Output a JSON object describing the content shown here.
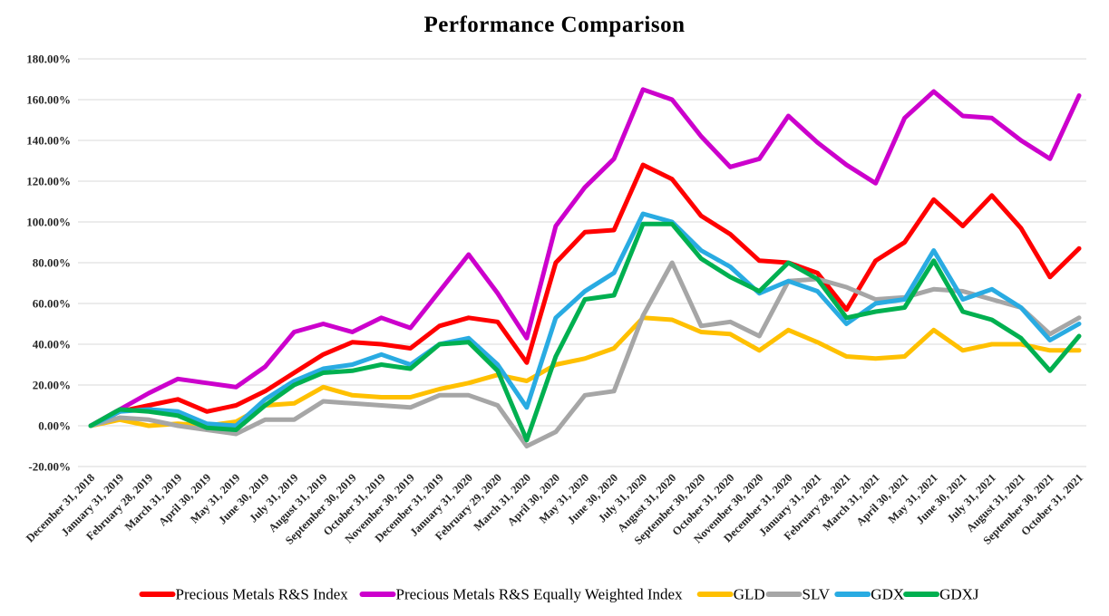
{
  "title": "Performance Comparison",
  "chart_data": {
    "type": "line",
    "title": "Performance Comparison",
    "xlabel": "",
    "ylabel": "",
    "ylim": [
      -20,
      180
    ],
    "ytick_step": 20,
    "ytick_format": "percent_2dp",
    "grid": "horizontal",
    "legend_position": "bottom",
    "background": "#ffffff",
    "gridline_color": "#d9d9d9",
    "categories": [
      "December 31, 2018",
      "January 31, 2019",
      "February 28, 2019",
      "March 31, 2019",
      "April 30, 2019",
      "May 31, 2019",
      "June 30, 2019",
      "July 31, 2019",
      "August 31, 2019",
      "September 30, 2019",
      "October 31, 2019",
      "November 30, 2019",
      "December 31, 2019",
      "January 31, 2020",
      "February 29, 2020",
      "March 31, 2020",
      "April 30, 2020",
      "May 31, 2020",
      "June 30, 2020",
      "July 31, 2020",
      "August 31, 2020",
      "September 30, 2020",
      "October 31, 2020",
      "November 30, 2020",
      "December 31, 2020",
      "January 31, 2021",
      "February 28, 2021",
      "March 31, 2021",
      "April 30, 2021",
      "May 31, 2021",
      "June 30, 2021",
      "July 31, 2021",
      "August 31, 2021",
      "September 30, 2021",
      "October 31, 2021"
    ],
    "series": [
      {
        "name": "Precious Metals R&S Index",
        "color": "#ff0000",
        "values": [
          0,
          7,
          10,
          13,
          7,
          10,
          17,
          26,
          35,
          41,
          40,
          38,
          49,
          53,
          51,
          31,
          80,
          95,
          96,
          128,
          121,
          103,
          94,
          81,
          80,
          75,
          57,
          81,
          90,
          111,
          98,
          113,
          97,
          73,
          87
        ]
      },
      {
        "name": "Precious Metals R&S Equally Weighted Index",
        "color": "#cc00cc",
        "values": [
          0,
          8,
          16,
          23,
          21,
          19,
          29,
          46,
          50,
          46,
          53,
          48,
          66,
          84,
          65,
          43,
          98,
          117,
          131,
          165,
          160,
          142,
          127,
          131,
          152,
          139,
          128,
          119,
          151,
          164,
          152,
          151,
          140,
          131,
          162
        ]
      },
      {
        "name": "GLD",
        "color": "#ffc000",
        "values": [
          0,
          3,
          0,
          1,
          0,
          2,
          10,
          11,
          19,
          15,
          14,
          14,
          18,
          21,
          25,
          22,
          30,
          33,
          38,
          53,
          52,
          46,
          45,
          37,
          47,
          41,
          34,
          33,
          34,
          47,
          37,
          40,
          40,
          37,
          37
        ]
      },
      {
        "name": "SLV",
        "color": "#a6a6a6",
        "values": [
          0,
          4,
          3,
          0,
          -2,
          -4,
          3,
          3,
          12,
          11,
          10,
          9,
          15,
          15,
          10,
          -10,
          -3,
          15,
          17,
          54,
          80,
          49,
          51,
          44,
          71,
          72,
          68,
          62,
          63,
          67,
          66,
          62,
          58,
          45,
          53
        ]
      },
      {
        "name": "GDX",
        "color": "#29abe2",
        "values": [
          0,
          7,
          8,
          7,
          1,
          0,
          13,
          22,
          28,
          30,
          35,
          30,
          40,
          43,
          30,
          9,
          53,
          66,
          75,
          104,
          100,
          86,
          78,
          65,
          71,
          66,
          50,
          60,
          62,
          86,
          62,
          67,
          58,
          42,
          50
        ]
      },
      {
        "name": "GDXJ",
        "color": "#00b050",
        "values": [
          0,
          8,
          7,
          5,
          -1,
          -2,
          10,
          20,
          26,
          27,
          30,
          28,
          40,
          41,
          27,
          -7,
          34,
          62,
          64,
          99,
          99,
          82,
          73,
          66,
          80,
          72,
          53,
          56,
          58,
          81,
          56,
          52,
          43,
          27,
          44
        ]
      }
    ]
  }
}
